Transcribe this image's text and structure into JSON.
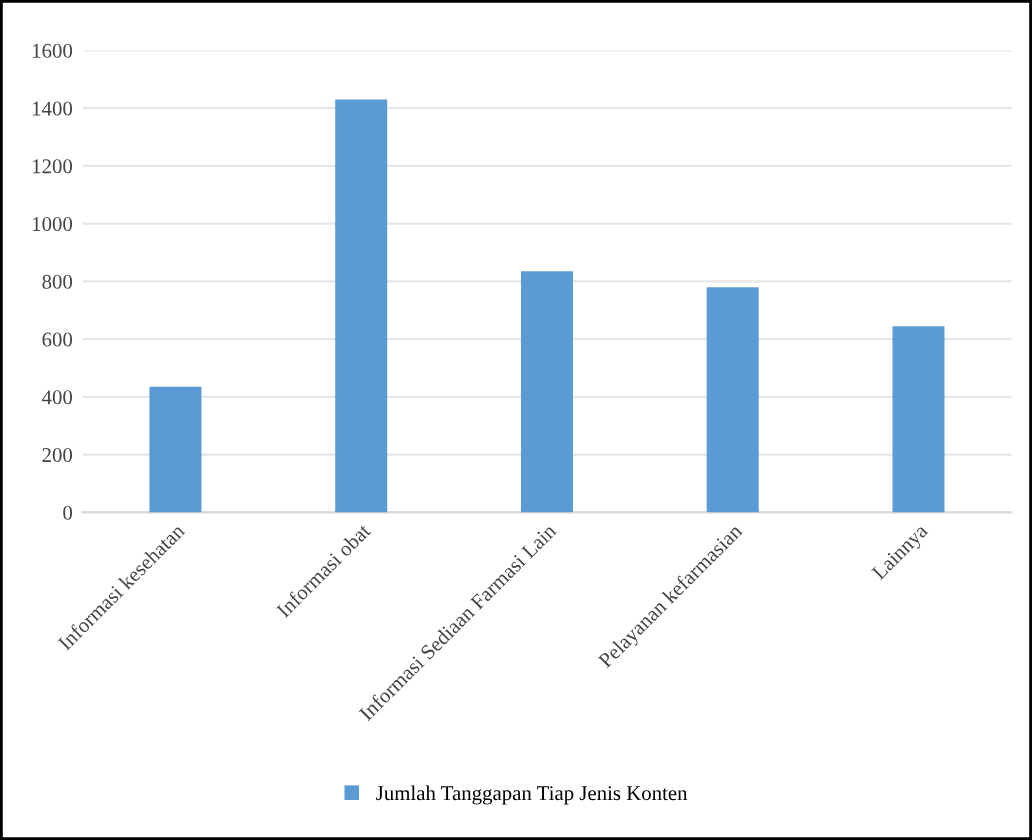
{
  "chart_data": {
    "type": "bar",
    "categories": [
      "Informasi kesehatan",
      "Informasi obat",
      "Informasi Sediaan Farmasi Lain",
      "Pelayanan kefarmasian",
      "Lainnya"
    ],
    "series": [
      {
        "name": "Jumlah Tanggapan Tiap Jenis Konten",
        "color": "#5b9bd5",
        "values": [
          435,
          1430,
          835,
          780,
          645
        ]
      }
    ],
    "ylim": [
      0,
      1600
    ],
    "yticks": [
      0,
      200,
      400,
      600,
      800,
      1000,
      1200,
      1400,
      1600
    ],
    "grid": "y",
    "legend": "bottom"
  }
}
